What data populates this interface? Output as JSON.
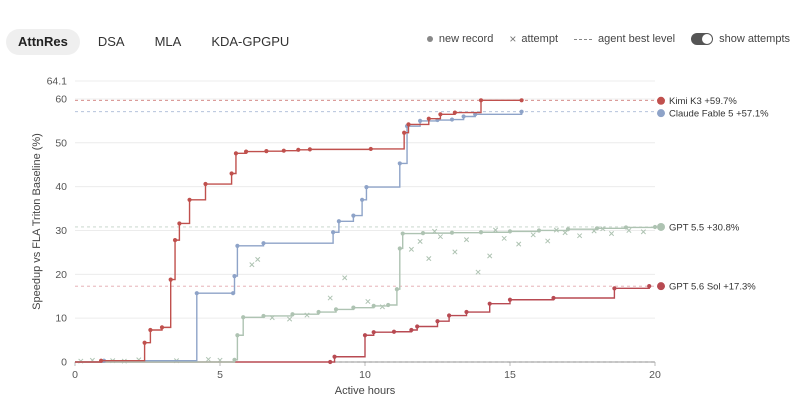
{
  "tabs": [
    {
      "label": "AttnRes",
      "active": true
    },
    {
      "label": "DSA",
      "active": false
    },
    {
      "label": "MLA",
      "active": false
    },
    {
      "label": "KDA-GPGPU",
      "active": false
    }
  ],
  "legend": {
    "new_record": "new record",
    "attempt": "attempt",
    "agent_best": "agent best level",
    "show_attempts": "show attempts",
    "show_attempts_on": true
  },
  "chart_data": {
    "type": "line",
    "xlabel": "Active hours",
    "ylabel": "Speedup vs FLA Triton Baseline (%)",
    "xlim": [
      0,
      20
    ],
    "ylim": [
      0,
      64.1
    ],
    "x_ticks": [
      "0",
      "5",
      "10",
      "15",
      "20"
    ],
    "y_ticks": [
      "0",
      "10",
      "20",
      "30",
      "40",
      "50",
      "60",
      "64.1"
    ],
    "grid": true,
    "series": [
      {
        "name": "Kimi K3",
        "end_label": "Kimi K3 +59.7%",
        "color": "#c0504d",
        "final": 59.7,
        "records": [
          [
            0,
            0
          ],
          [
            0.9,
            0.3
          ],
          [
            2.4,
            4.4
          ],
          [
            2.6,
            7.3
          ],
          [
            3.0,
            7.9
          ],
          [
            3.3,
            18.8
          ],
          [
            3.45,
            27.8
          ],
          [
            3.6,
            31.6
          ],
          [
            3.95,
            37.0
          ],
          [
            4.5,
            40.6
          ],
          [
            5.4,
            43.0
          ],
          [
            5.55,
            47.6
          ],
          [
            5.9,
            48.0
          ],
          [
            6.6,
            48.1
          ],
          [
            7.2,
            48.2
          ],
          [
            7.7,
            48.4
          ],
          [
            8.1,
            48.5
          ],
          [
            10.2,
            48.6
          ],
          [
            11.35,
            52.3
          ],
          [
            11.5,
            54.2
          ],
          [
            12.2,
            55.5
          ],
          [
            12.6,
            56.5
          ],
          [
            13.1,
            56.9
          ],
          [
            14.0,
            59.7
          ],
          [
            15.4,
            59.7
          ]
        ],
        "attempts": []
      },
      {
        "name": "Claude Fable 5",
        "end_label": "Claude Fable 5 +57.1%",
        "color": "#8ea3c8",
        "final": 57.1,
        "records": [
          [
            0,
            0
          ],
          [
            1.0,
            0.3
          ],
          [
            4.2,
            15.7
          ],
          [
            5.45,
            15.7
          ],
          [
            5.5,
            19.6
          ],
          [
            5.6,
            26.5
          ],
          [
            6.5,
            27.1
          ],
          [
            8.9,
            29.6
          ],
          [
            9.1,
            32.1
          ],
          [
            9.6,
            33.4
          ],
          [
            9.9,
            37.0
          ],
          [
            10.05,
            39.9
          ],
          [
            11.2,
            45.3
          ],
          [
            11.45,
            53.8
          ],
          [
            11.9,
            55.0
          ],
          [
            12.5,
            55.2
          ],
          [
            13.0,
            55.3
          ],
          [
            13.4,
            56.0
          ],
          [
            13.8,
            56.5
          ],
          [
            15.4,
            57.1
          ]
        ],
        "attempts": []
      },
      {
        "name": "GPT 5.5",
        "end_label": "GPT 5.5 +30.8%",
        "color": "#aec3b2",
        "final": 30.8,
        "records": [
          [
            0,
            0
          ],
          [
            5.5,
            0.5
          ],
          [
            5.6,
            6.1
          ],
          [
            5.8,
            10.2
          ],
          [
            6.5,
            10.5
          ],
          [
            7.5,
            10.9
          ],
          [
            8.4,
            11.4
          ],
          [
            9.0,
            12.0
          ],
          [
            9.6,
            12.4
          ],
          [
            10.3,
            12.8
          ],
          [
            10.8,
            13.0
          ],
          [
            11.1,
            16.6
          ],
          [
            11.2,
            25.9
          ],
          [
            11.3,
            29.3
          ],
          [
            12.0,
            29.4
          ],
          [
            13.0,
            29.5
          ],
          [
            14.0,
            29.6
          ],
          [
            15.0,
            29.8
          ],
          [
            16.0,
            30.0
          ],
          [
            17.0,
            30.3
          ],
          [
            18.0,
            30.5
          ],
          [
            19.0,
            30.7
          ],
          [
            20.0,
            30.8
          ]
        ],
        "attempts": [
          [
            0.2,
            0.2
          ],
          [
            0.6,
            0.4
          ],
          [
            1.3,
            0.3
          ],
          [
            1.7,
            0.2
          ],
          [
            2.2,
            0.5
          ],
          [
            3.5,
            0.3
          ],
          [
            4.6,
            0.6
          ],
          [
            5.0,
            0.4
          ],
          [
            6.3,
            23.4
          ],
          [
            6.1,
            22.2
          ],
          [
            6.8,
            10.1
          ],
          [
            7.4,
            9.8
          ],
          [
            8.0,
            10.7
          ],
          [
            8.8,
            14.6
          ],
          [
            9.3,
            19.2
          ],
          [
            10.1,
            13.8
          ],
          [
            10.6,
            12.6
          ],
          [
            11.6,
            25.7
          ],
          [
            11.9,
            27.5
          ],
          [
            12.2,
            23.6
          ],
          [
            12.6,
            28.6
          ],
          [
            13.1,
            25.1
          ],
          [
            13.5,
            27.9
          ],
          [
            13.9,
            20.5
          ],
          [
            14.3,
            24.2
          ],
          [
            14.8,
            28.2
          ],
          [
            15.3,
            26.9
          ],
          [
            15.8,
            29.0
          ],
          [
            16.3,
            27.6
          ],
          [
            16.9,
            29.5
          ],
          [
            17.4,
            28.8
          ],
          [
            17.9,
            29.9
          ],
          [
            18.5,
            29.3
          ],
          [
            19.1,
            30.0
          ],
          [
            19.6,
            29.7
          ],
          [
            12.4,
            29.8
          ],
          [
            14.5,
            30.1
          ],
          [
            16.6,
            30.1
          ],
          [
            18.2,
            30.4
          ]
        ]
      },
      {
        "name": "GPT 5.6 Sol",
        "end_label": "GPT 5.6 Sol +17.3%",
        "color": "#b84a52",
        "final": 17.3,
        "records": [
          [
            0,
            0
          ],
          [
            8.8,
            0
          ],
          [
            8.95,
            1.2
          ],
          [
            10.0,
            6.1
          ],
          [
            10.3,
            6.8
          ],
          [
            11.0,
            6.9
          ],
          [
            11.6,
            7.3
          ],
          [
            11.8,
            8.1
          ],
          [
            12.5,
            9.3
          ],
          [
            12.9,
            10.6
          ],
          [
            13.5,
            11.4
          ],
          [
            14.3,
            13.3
          ],
          [
            15.0,
            14.2
          ],
          [
            16.5,
            14.6
          ],
          [
            18.6,
            16.8
          ],
          [
            19.8,
            17.3
          ]
        ],
        "attempts": []
      }
    ],
    "best_levels": [
      {
        "value": 59.7,
        "color": "#c0504d"
      },
      {
        "value": 57.1,
        "color": "#8ea3c8"
      },
      {
        "value": 30.8,
        "color": "#aec3b2"
      },
      {
        "value": 17.3,
        "color": "#d98a94"
      }
    ]
  }
}
